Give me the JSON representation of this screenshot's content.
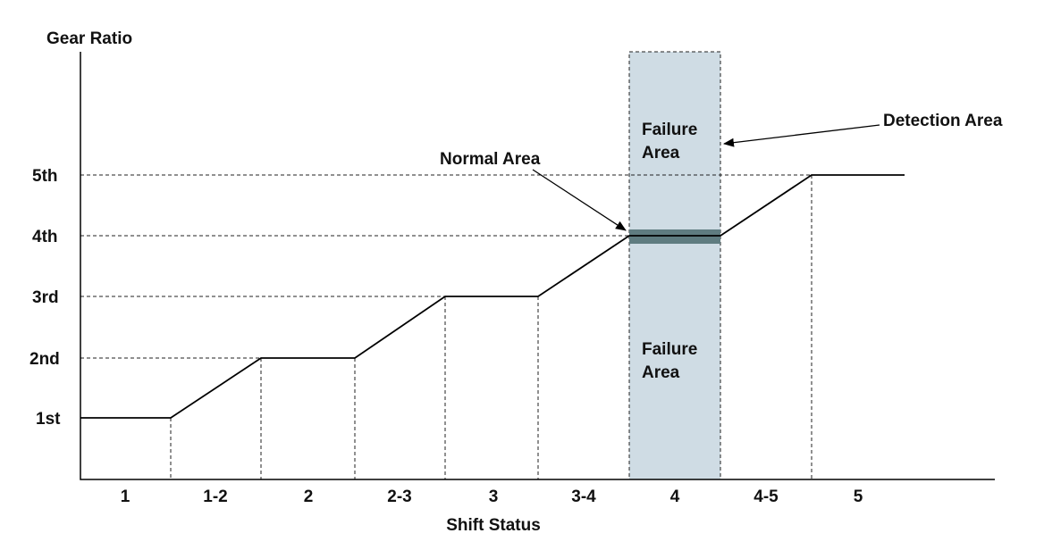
{
  "diagram": {
    "y_axis_title": "Gear Ratio",
    "x_axis_title": "Shift Status",
    "gear_labels": [
      "1st",
      "2nd",
      "3rd",
      "4th",
      "5th"
    ],
    "shift_labels": [
      "1",
      "1-2",
      "2",
      "2-3",
      "3",
      "3-4",
      "4",
      "4-5",
      "5"
    ],
    "annotations": {
      "failure_upper": [
        "Failure",
        "Area"
      ],
      "failure_lower": [
        "Failure",
        "Area"
      ],
      "normal_area": "Normal Area",
      "detection_area": "Detection Area"
    }
  }
}
